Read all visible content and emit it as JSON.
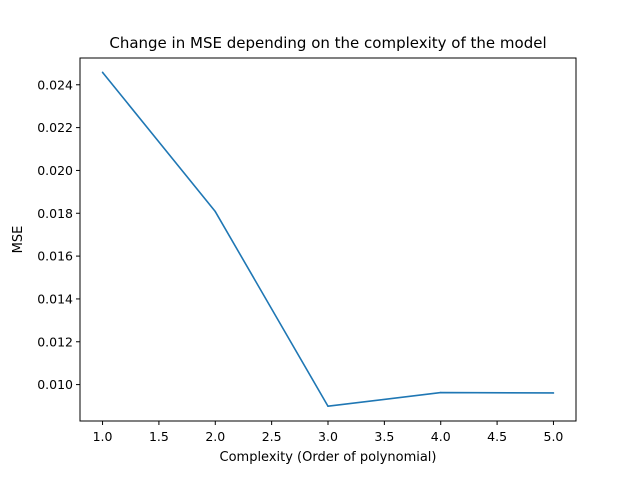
{
  "chart_data": {
    "type": "line",
    "title": "Change in MSE depending on the complexity of the model",
    "xlabel": "Complexity (Order of polynomial)",
    "ylabel": "MSE",
    "xlim": [
      0.8,
      5.2
    ],
    "ylim": [
      0.0083,
      0.02525
    ],
    "xticks": [
      {
        "value": 1.0,
        "label": "1.0"
      },
      {
        "value": 1.5,
        "label": "1.5"
      },
      {
        "value": 2.0,
        "label": "2.0"
      },
      {
        "value": 2.5,
        "label": "2.5"
      },
      {
        "value": 3.0,
        "label": "3.0"
      },
      {
        "value": 3.5,
        "label": "3.5"
      },
      {
        "value": 4.0,
        "label": "4.0"
      },
      {
        "value": 4.5,
        "label": "4.5"
      },
      {
        "value": 5.0,
        "label": "5.0"
      }
    ],
    "yticks": [
      {
        "value": 0.01,
        "label": "0.010"
      },
      {
        "value": 0.012,
        "label": "0.012"
      },
      {
        "value": 0.014,
        "label": "0.014"
      },
      {
        "value": 0.016,
        "label": "0.016"
      },
      {
        "value": 0.018,
        "label": "0.018"
      },
      {
        "value": 0.02,
        "label": "0.020"
      },
      {
        "value": 0.022,
        "label": "0.022"
      },
      {
        "value": 0.024,
        "label": "0.024"
      }
    ],
    "grid": false,
    "legend": "none",
    "series": [
      {
        "color": "#1f77b4",
        "x": [
          1,
          2,
          3,
          4,
          5
        ],
        "y": [
          0.02458,
          0.01808,
          0.00899,
          0.00963,
          0.00961
        ]
      }
    ]
  }
}
